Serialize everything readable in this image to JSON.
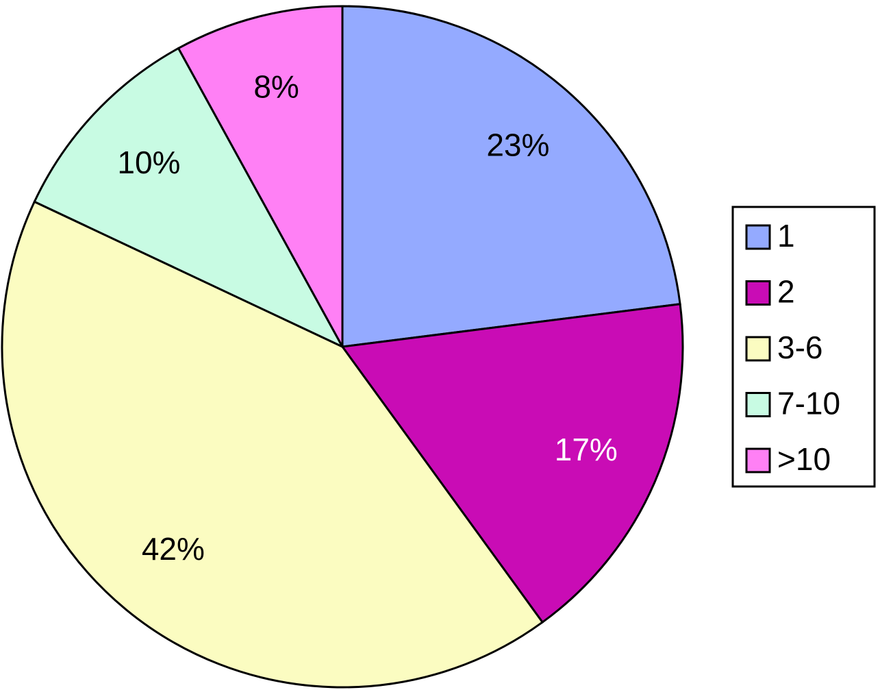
{
  "chart_data": {
    "type": "pie",
    "categories": [
      "1",
      "2",
      "3-6",
      "7-10",
      ">10"
    ],
    "values": [
      23,
      17,
      42,
      10,
      8
    ],
    "value_labels": [
      "23%",
      "17%",
      "42%",
      "10%",
      "8%"
    ],
    "colors": [
      "#94aaff",
      "#c90cb5",
      "#fbfcc1",
      "#c8fbe3",
      "#ff80f5"
    ],
    "legend": "right"
  }
}
